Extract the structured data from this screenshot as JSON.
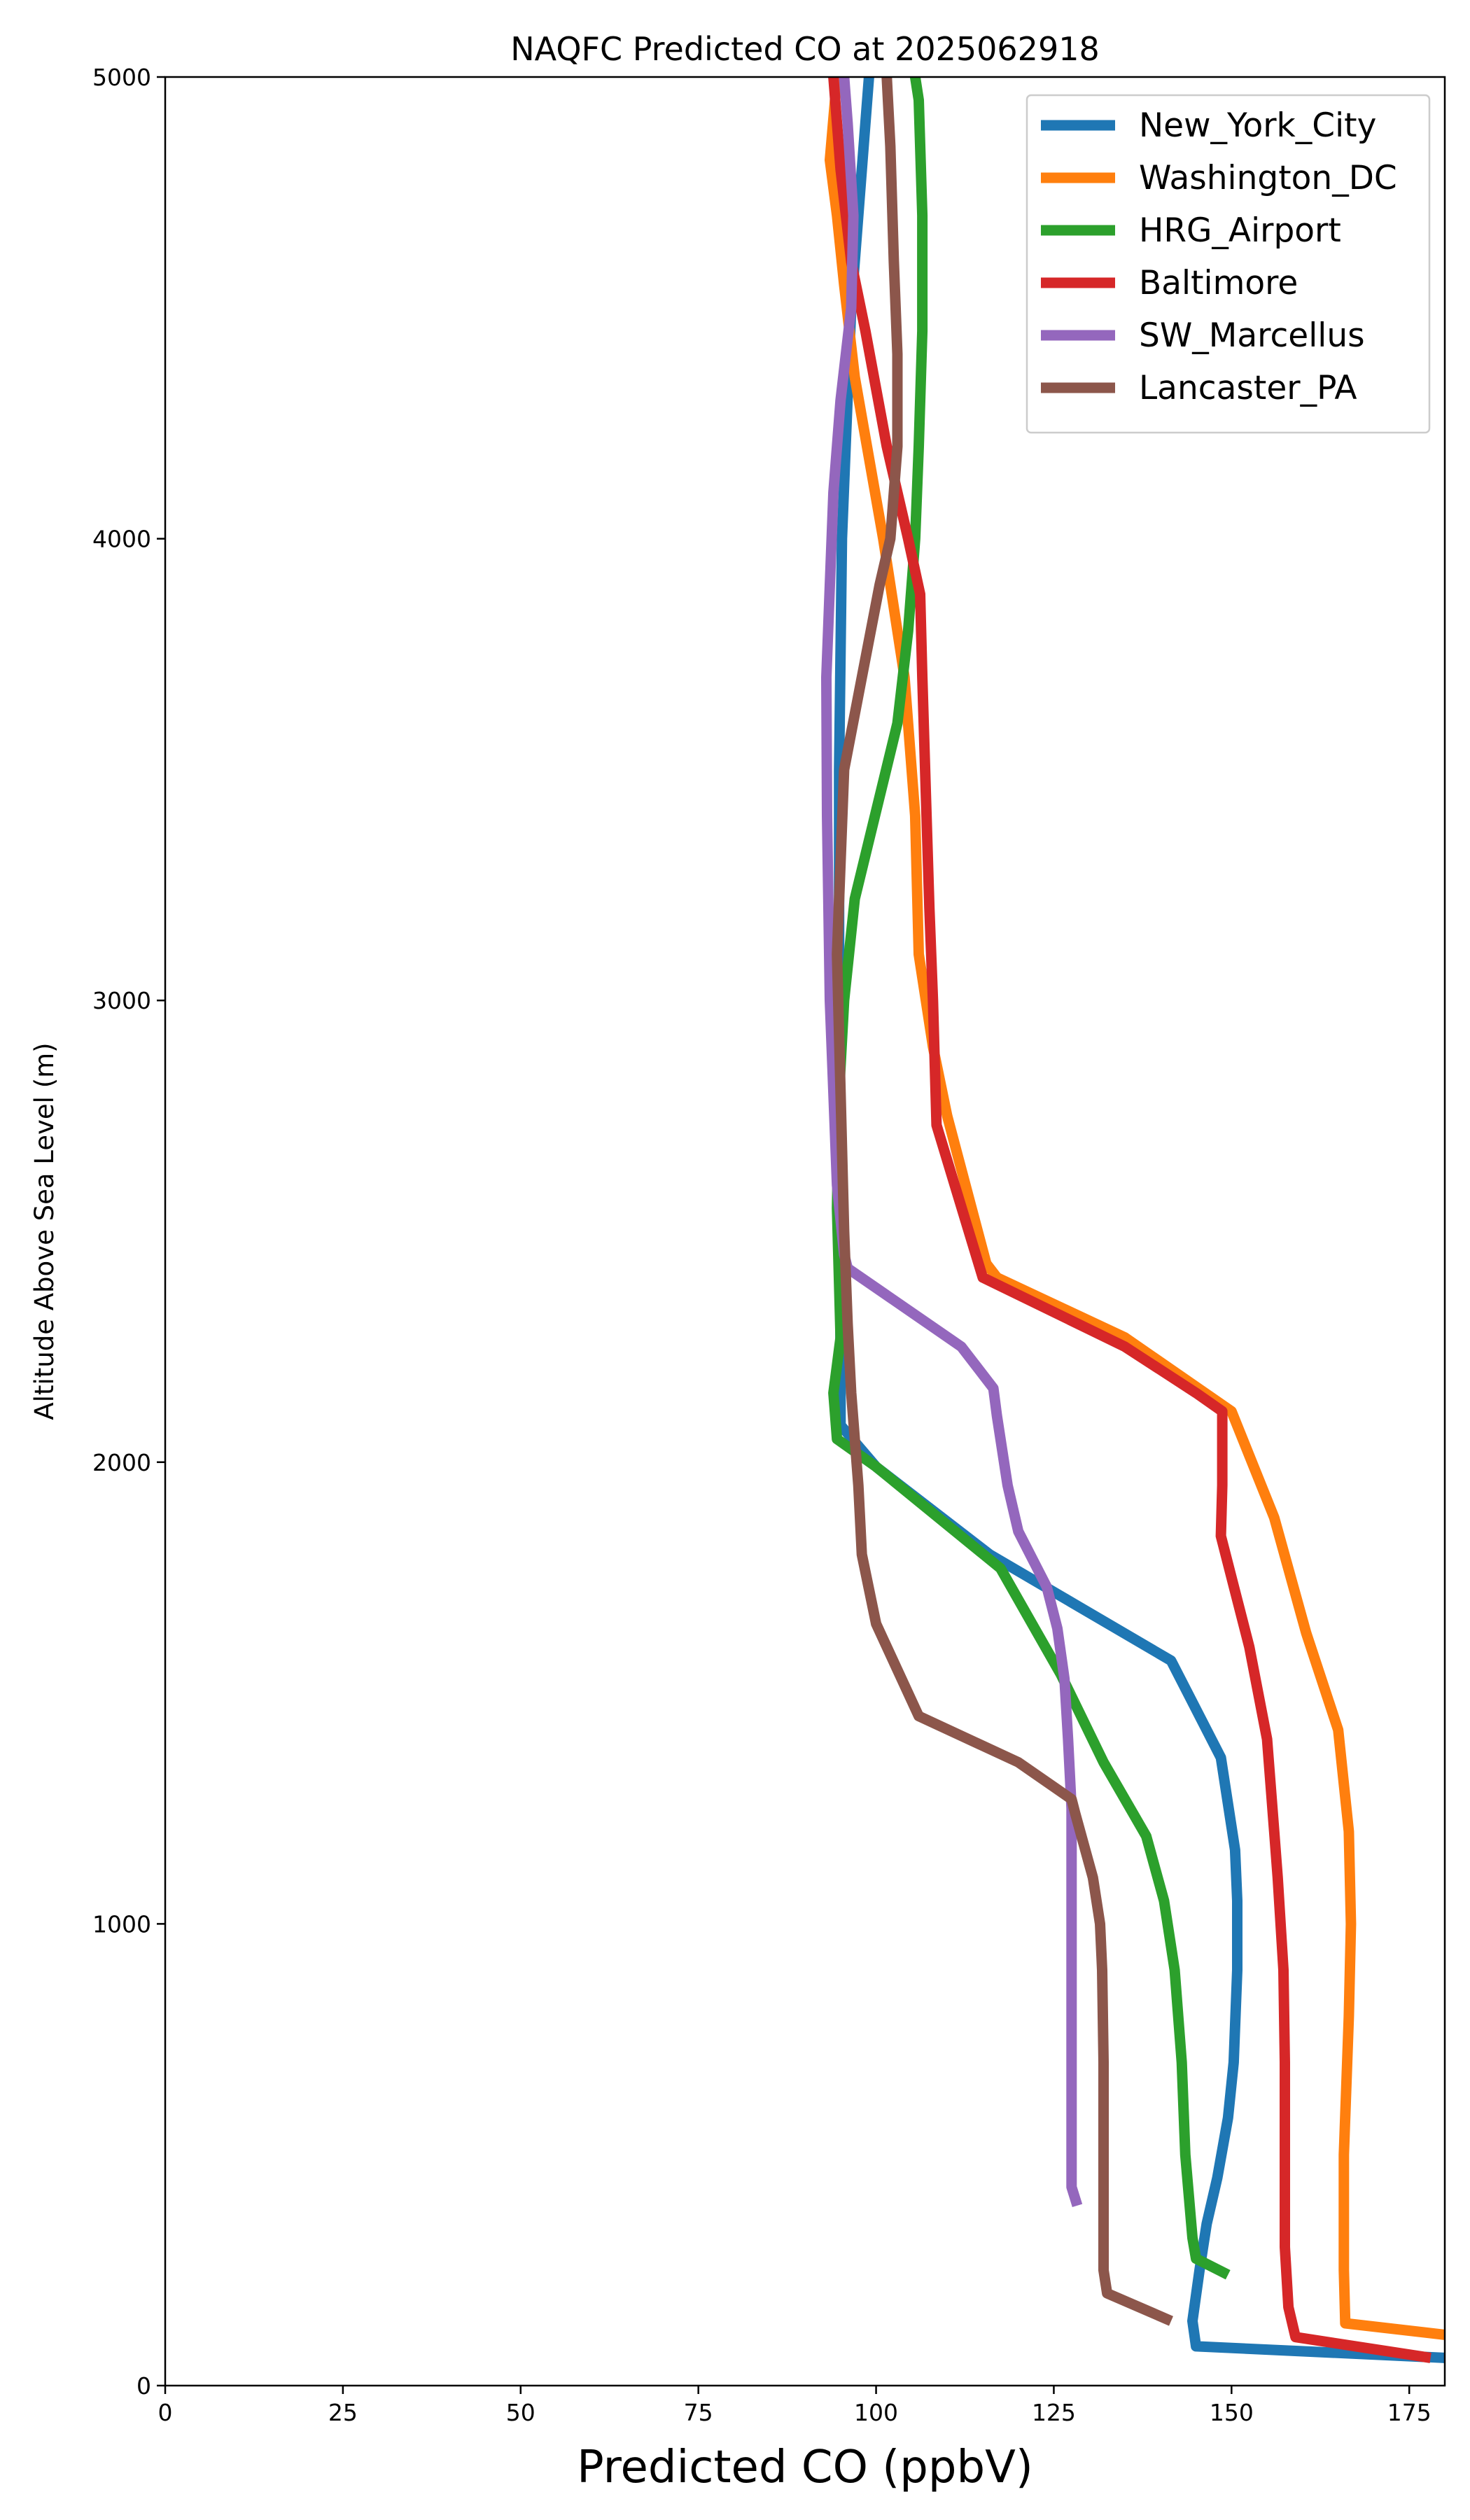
{
  "chart_data": {
    "type": "line",
    "title": "NAQFC Predicted CO at 2025062918",
    "xlabel": "Predicted CO (ppbV)",
    "ylabel": "Altitude Above Sea Level (m)",
    "xlim": [
      0,
      180
    ],
    "ylim": [
      0,
      5000
    ],
    "xticks": [
      0,
      25,
      50,
      75,
      100,
      125,
      150,
      175
    ],
    "yticks": [
      0,
      1000,
      2000,
      3000,
      4000,
      5000
    ],
    "grid": false,
    "legend_position": "top-right",
    "series": [
      {
        "name": "New_York_City",
        "color": "#1f77b4",
        "points": [
          [
            180,
            60
          ],
          [
            145,
            85
          ],
          [
            144.5,
            140
          ],
          [
            145.5,
            250
          ],
          [
            146.5,
            350
          ],
          [
            148,
            450
          ],
          [
            149.5,
            580
          ],
          [
            150.3,
            700
          ],
          [
            150.8,
            900
          ],
          [
            150.8,
            1050
          ],
          [
            150.5,
            1160
          ],
          [
            148.5,
            1360
          ],
          [
            141.5,
            1570
          ],
          [
            116,
            1800
          ],
          [
            100,
            1990
          ],
          [
            95,
            2080
          ],
          [
            95,
            2200
          ],
          [
            94.8,
            3000
          ],
          [
            94.8,
            3500
          ],
          [
            95.2,
            4000
          ],
          [
            96.5,
            4500
          ],
          [
            98,
            4800
          ],
          [
            99,
            5000
          ]
        ]
      },
      {
        "name": "Washington_DC",
        "color": "#ff7f0e",
        "points": [
          [
            180,
            110
          ],
          [
            166,
            135
          ],
          [
            165.8,
            250
          ],
          [
            165.8,
            500
          ],
          [
            166.5,
            800
          ],
          [
            166.8,
            1000
          ],
          [
            166.5,
            1200
          ],
          [
            165,
            1420
          ],
          [
            160.5,
            1630
          ],
          [
            156,
            1880
          ],
          [
            150,
            2110
          ],
          [
            135,
            2270
          ],
          [
            117,
            2400
          ],
          [
            115.5,
            2430
          ],
          [
            110,
            2750
          ],
          [
            108,
            2900
          ],
          [
            106,
            3100
          ],
          [
            105.5,
            3400
          ],
          [
            104,
            3700
          ],
          [
            101,
            4000
          ],
          [
            97,
            4350
          ],
          [
            95.5,
            4550
          ],
          [
            94.5,
            4700
          ],
          [
            93.5,
            4820
          ],
          [
            94.5,
            5000
          ]
        ]
      },
      {
        "name": "HRG_Airport",
        "color": "#2ca02c",
        "points": [
          [
            149.5,
            240
          ],
          [
            145,
            275
          ],
          [
            144.5,
            320
          ],
          [
            143.5,
            500
          ],
          [
            143,
            700
          ],
          [
            142,
            900
          ],
          [
            140.5,
            1050
          ],
          [
            138,
            1190
          ],
          [
            132,
            1350
          ],
          [
            126,
            1540
          ],
          [
            117.5,
            1770
          ],
          [
            100,
            1990
          ],
          [
            94.5,
            2050
          ],
          [
            94,
            2150
          ],
          [
            95,
            2270
          ],
          [
            94.5,
            2550
          ],
          [
            94.8,
            2800
          ],
          [
            95.5,
            3000
          ],
          [
            97,
            3220
          ],
          [
            103,
            3600
          ],
          [
            104.5,
            3800
          ],
          [
            105.5,
            4000
          ],
          [
            106,
            4200
          ],
          [
            106.5,
            4450
          ],
          [
            106.5,
            4700
          ],
          [
            106,
            4950
          ],
          [
            105.5,
            5000
          ]
        ]
      },
      {
        "name": "Baltimore",
        "color": "#d62728",
        "points": [
          [
            178,
            60
          ],
          [
            159,
            105
          ],
          [
            158,
            170
          ],
          [
            157.5,
            300
          ],
          [
            157.5,
            500
          ],
          [
            157.5,
            700
          ],
          [
            157.3,
            900
          ],
          [
            156.5,
            1100
          ],
          [
            156,
            1200
          ],
          [
            155,
            1400
          ],
          [
            152.5,
            1600
          ],
          [
            148.5,
            1840
          ],
          [
            148.7,
            1950
          ],
          [
            148.7,
            2110
          ],
          [
            145,
            2150
          ],
          [
            135,
            2250
          ],
          [
            115,
            2400
          ],
          [
            108.5,
            2730
          ],
          [
            108,
            3000
          ],
          [
            107.5,
            3200
          ],
          [
            107,
            3450
          ],
          [
            106.5,
            3700
          ],
          [
            106.2,
            3880
          ],
          [
            104.5,
            4000
          ],
          [
            101.5,
            4200
          ],
          [
            98.5,
            4450
          ],
          [
            96.5,
            4600
          ],
          [
            95,
            4800
          ],
          [
            94,
            5000
          ]
        ]
      },
      {
        "name": "SW_Marcellus",
        "color": "#9467bd",
        "points": [
          [
            128.3,
            390
          ],
          [
            127.5,
            430
          ],
          [
            127.5,
            500
          ],
          [
            127.5,
            700
          ],
          [
            127.5,
            900
          ],
          [
            127.5,
            1100
          ],
          [
            127.5,
            1250
          ],
          [
            127,
            1400
          ],
          [
            126.5,
            1530
          ],
          [
            125.5,
            1640
          ],
          [
            124,
            1730
          ],
          [
            120,
            1850
          ],
          [
            118.5,
            1950
          ],
          [
            117,
            2100
          ],
          [
            116.5,
            2160
          ],
          [
            112,
            2250
          ],
          [
            96,
            2420
          ],
          [
            95.5,
            2450
          ],
          [
            94.5,
            2600
          ],
          [
            94,
            2800
          ],
          [
            93.5,
            3000
          ],
          [
            93.3,
            3200
          ],
          [
            93.1,
            3400
          ],
          [
            93,
            3700
          ],
          [
            93.5,
            3900
          ],
          [
            94,
            4100
          ],
          [
            95,
            4300
          ],
          [
            96.5,
            4500
          ],
          [
            96.8,
            4700
          ],
          [
            96,
            4900
          ],
          [
            95.5,
            5000
          ]
        ]
      },
      {
        "name": "Lancaster_PA",
        "color": "#8c564b",
        "points": [
          [
            141.5,
            140
          ],
          [
            132.5,
            200
          ],
          [
            132,
            250
          ],
          [
            132,
            350
          ],
          [
            132,
            500
          ],
          [
            132,
            700
          ],
          [
            131.8,
            900
          ],
          [
            131.5,
            1000
          ],
          [
            130.5,
            1100
          ],
          [
            128,
            1240
          ],
          [
            127.5,
            1270
          ],
          [
            120,
            1350
          ],
          [
            106,
            1450
          ],
          [
            100,
            1650
          ],
          [
            98,
            1800
          ],
          [
            97.5,
            1950
          ],
          [
            96.5,
            2150
          ],
          [
            96,
            2300
          ],
          [
            95.5,
            2500
          ],
          [
            95,
            2800
          ],
          [
            94.5,
            3100
          ],
          [
            95,
            3300
          ],
          [
            95.5,
            3500
          ],
          [
            98,
            3700
          ],
          [
            100.5,
            3900
          ],
          [
            102,
            4000
          ],
          [
            103,
            4200
          ],
          [
            103,
            4400
          ],
          [
            102.5,
            4600
          ],
          [
            102,
            4850
          ],
          [
            101.5,
            5000
          ]
        ]
      }
    ]
  }
}
